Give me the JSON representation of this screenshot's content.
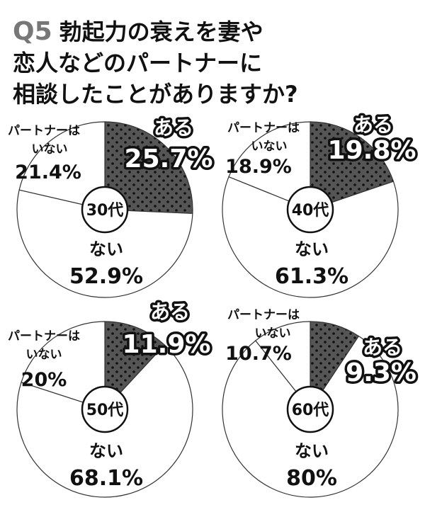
{
  "title": {
    "q": "Q5",
    "lines": [
      "勃起力の衰えを妻や",
      "恋人などのパートナーに",
      "相談したことがありますか?"
    ]
  },
  "colors": {
    "yes_fill": "#555555",
    "dot": "#111111",
    "other_fill": "#ffffff",
    "stroke": "#333333"
  },
  "chart_data": [
    {
      "type": "pie",
      "title": "30代",
      "labels": [
        "ある",
        "ない",
        "パートナーはいない"
      ],
      "values": [
        25.7,
        52.9,
        21.4
      ],
      "value_labels": [
        "25.7%",
        "52.9%",
        "21.4%"
      ]
    },
    {
      "type": "pie",
      "title": "40代",
      "labels": [
        "ある",
        "ない",
        "パートナーはいない"
      ],
      "values": [
        19.8,
        61.3,
        18.9
      ],
      "value_labels": [
        "19.8%",
        "61.3%",
        "18.9%"
      ]
    },
    {
      "type": "pie",
      "title": "50代",
      "labels": [
        "ある",
        "ない",
        "パートナーはいない"
      ],
      "values": [
        11.9,
        68.1,
        20
      ],
      "value_labels": [
        "11.9%",
        "68.1%",
        "20%"
      ]
    },
    {
      "type": "pie",
      "title": "60代",
      "labels": [
        "ある",
        "ない",
        "パートナーはいない"
      ],
      "values": [
        9.3,
        80,
        10.7
      ],
      "value_labels": [
        "9.3%",
        "80%",
        "10.7%"
      ]
    }
  ],
  "partner_label_lines": [
    "パートナーは",
    "いない"
  ]
}
